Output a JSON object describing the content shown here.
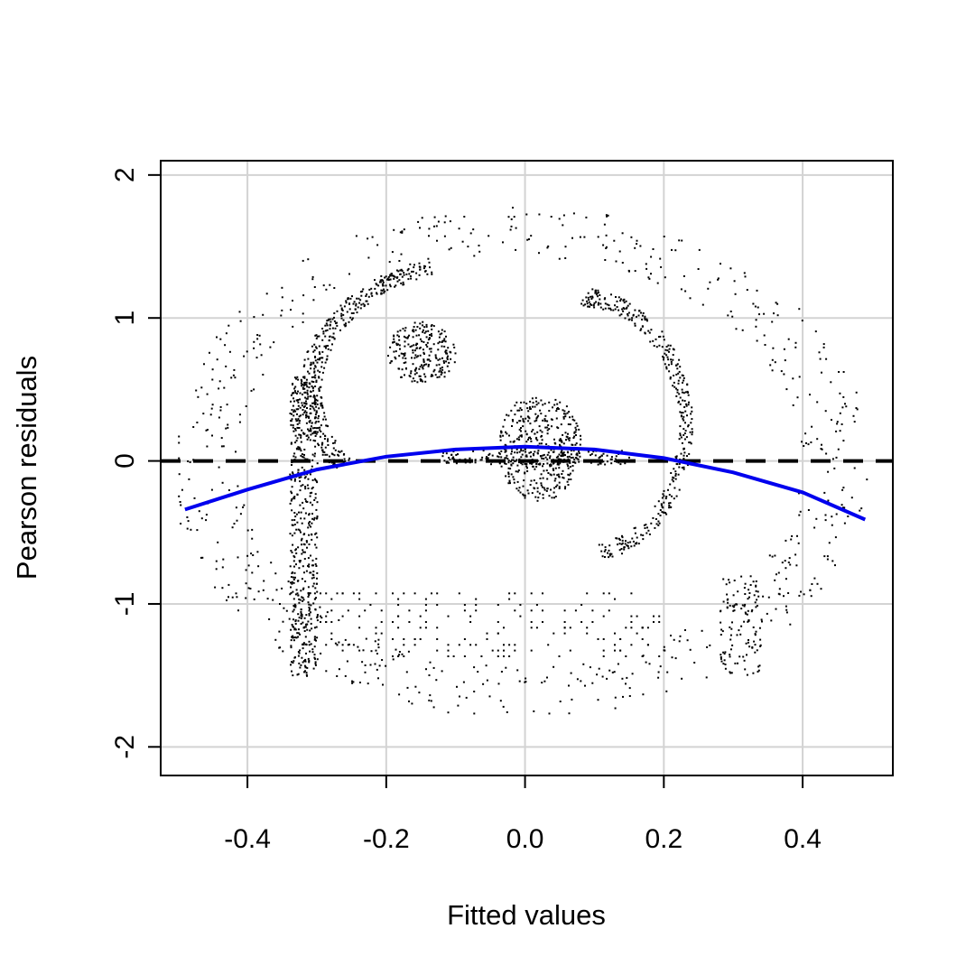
{
  "chart_data": {
    "type": "scatter",
    "title": "",
    "xlabel": "Fitted values",
    "ylabel": "Pearson residuals",
    "xlim": [
      -0.525,
      0.53
    ],
    "ylim": [
      -2.2,
      2.1
    ],
    "xticks": [
      -0.4,
      -0.2,
      0.0,
      0.2,
      0.4
    ],
    "xtick_labels": [
      "-0.4",
      "-0.2",
      "0.0",
      "0.2",
      "0.4"
    ],
    "yticks": [
      -2,
      -1,
      0,
      1,
      2
    ],
    "ytick_labels": [
      "-2",
      "-1",
      "0",
      "1",
      "2"
    ],
    "grid": true,
    "reference_line": {
      "y": 0,
      "style": "dashed",
      "color": "#000000"
    },
    "smooth_fit": {
      "color": "#0000ee",
      "x": [
        -0.49,
        -0.4,
        -0.3,
        -0.2,
        -0.1,
        0.0,
        0.1,
        0.2,
        0.3,
        0.4,
        0.49
      ],
      "y": [
        -0.34,
        -0.2,
        -0.06,
        0.03,
        0.08,
        0.1,
        0.08,
        0.02,
        -0.08,
        -0.22,
        -0.41
      ]
    },
    "point_color": "#000000",
    "points_description_shapes": {
      "outer_ring": {
        "cx": -0.01,
        "cy": 0.0,
        "rx": 0.4,
        "ry": 1.63
      },
      "c_arc": {
        "cx": -0.05,
        "cy": 0.5,
        "rx": 0.26,
        "ry": 0.92,
        "from_deg": 110,
        "to_deg": 215
      },
      "left_column": {
        "x0": -0.34,
        "x1": -0.3,
        "y0": -1.5,
        "y1": 0.6
      },
      "eye_blob": {
        "cx": -0.15,
        "cy": 0.76,
        "rx": 0.05,
        "ry": 0.22
      },
      "center_blob": {
        "cx": 0.02,
        "cy": 0.1,
        "rx": 0.06,
        "ry": 0.38
      },
      "right_arc": {
        "cx": 0.08,
        "cy": 0.25,
        "rx": 0.15,
        "ry": 0.9,
        "from_deg": -80,
        "to_deg": 90
      },
      "bottom_text_band": {
        "x0": -0.32,
        "x1": 0.2,
        "y0": -1.38,
        "y1": -0.9
      },
      "right_leg": {
        "x0": 0.28,
        "x1": 0.34,
        "y0": -1.5,
        "y1": -0.8
      }
    }
  }
}
